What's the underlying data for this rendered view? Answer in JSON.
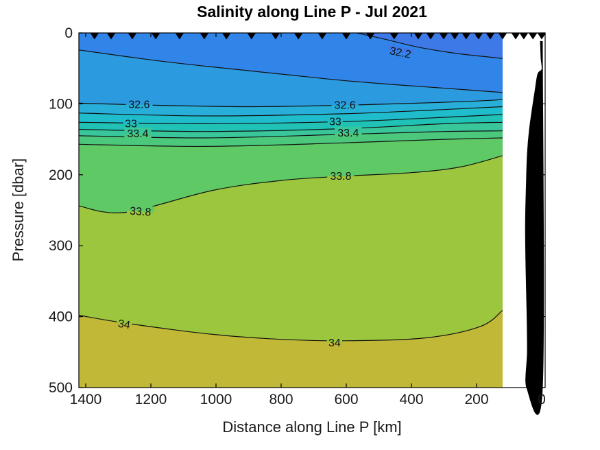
{
  "chart_data": {
    "type": "filled-contour",
    "title": "Salinity along Line P - Jul 2021",
    "xlabel": "Distance along Line P [km]",
    "ylabel": "Pressure [dbar]",
    "x_ticks": [
      1400,
      1200,
      1000,
      800,
      600,
      400,
      200,
      0
    ],
    "y_ticks": [
      0,
      100,
      200,
      300,
      400,
      500
    ],
    "xlim": [
      1420,
      0
    ],
    "ylim": [
      0,
      500
    ],
    "x_axis_reversed": true,
    "contour_interval": 0.2,
    "levels": [
      32.2,
      32.4,
      32.6,
      32.8,
      33.0,
      33.2,
      33.4,
      33.6,
      33.8,
      34.0
    ],
    "bands": [
      {
        "range": "<32.2",
        "color": "#3D7AE8"
      },
      {
        "range": "32.2-32.4",
        "color": "#3185E9"
      },
      {
        "range": "32.4-32.6",
        "color": "#2C9ADF"
      },
      {
        "range": "32.6-32.8",
        "color": "#27AED9"
      },
      {
        "range": "32.8-33.0",
        "color": "#1FBCCB"
      },
      {
        "range": "33.0-33.2",
        "color": "#1FC2B4"
      },
      {
        "range": "33.2-33.4",
        "color": "#38C69A"
      },
      {
        "range": "33.4-33.6",
        "color": "#4CC87D"
      },
      {
        "range": "33.6-33.8",
        "color": "#5FC966"
      },
      {
        "range": "33.8-34.0",
        "color": "#9CC63E"
      },
      {
        "range": ">34.0",
        "color": "#C2B838"
      }
    ],
    "contours": [
      {
        "level": 32.2,
        "points": [
          [
            568,
            0
          ],
          [
            480,
            9
          ],
          [
            380,
            20
          ],
          [
            260,
            29
          ],
          [
            120,
            36
          ]
        ]
      },
      {
        "level": 32.4,
        "points": [
          [
            1421,
            24
          ],
          [
            1200,
            38
          ],
          [
            1030,
            47
          ],
          [
            800,
            58
          ],
          [
            610,
            67
          ],
          [
            420,
            74
          ],
          [
            295,
            78
          ],
          [
            120,
            84
          ]
        ]
      },
      {
        "level": 32.6,
        "points": [
          [
            1421,
            99
          ],
          [
            1180,
            102
          ],
          [
            900,
            104
          ],
          [
            610,
            102
          ],
          [
            380,
            99
          ],
          [
            200,
            96
          ],
          [
            120,
            94
          ]
        ]
      },
      {
        "level": 32.8,
        "points": [
          [
            1421,
            113
          ],
          [
            1030,
            117
          ],
          [
            610,
            114
          ],
          [
            300,
            108
          ],
          [
            120,
            104
          ]
        ]
      },
      {
        "level": 33.0,
        "points": [
          [
            1421,
            126
          ],
          [
            1030,
            128
          ],
          [
            610,
            125
          ],
          [
            300,
            119
          ],
          [
            120,
            115
          ]
        ]
      },
      {
        "level": 33.2,
        "points": [
          [
            1421,
            136
          ],
          [
            1030,
            139
          ],
          [
            610,
            135
          ],
          [
            300,
            128
          ],
          [
            120,
            126
          ]
        ]
      },
      {
        "level": 33.4,
        "points": [
          [
            1421,
            145
          ],
          [
            1030,
            148
          ],
          [
            610,
            143
          ],
          [
            300,
            139
          ],
          [
            120,
            138
          ]
        ]
      },
      {
        "level": 33.6,
        "points": [
          [
            1421,
            157
          ],
          [
            1030,
            160
          ],
          [
            610,
            155
          ],
          [
            300,
            150
          ],
          [
            120,
            148
          ]
        ]
      },
      {
        "level": 33.8,
        "points": [
          [
            1421,
            244
          ],
          [
            1280,
            253
          ],
          [
            1010,
            222
          ],
          [
            800,
            208
          ],
          [
            610,
            202
          ],
          [
            400,
            197
          ],
          [
            250,
            189
          ],
          [
            120,
            173
          ]
        ]
      },
      {
        "level": 34.0,
        "points": [
          [
            1421,
            398
          ],
          [
            1280,
            409
          ],
          [
            1010,
            425
          ],
          [
            800,
            432
          ],
          [
            610,
            434
          ],
          [
            358,
            430
          ],
          [
            189,
            414
          ],
          [
            120,
            391
          ]
        ]
      }
    ],
    "contour_labels": [
      {
        "text": "32.2",
        "km": 434,
        "dbar": 28,
        "rot": 11,
        "upper": "<32.2",
        "lower": "32.2-32.4"
      },
      {
        "text": "32.6",
        "km": 1236,
        "dbar": 101,
        "rot": 0,
        "upper": "32.4-32.6",
        "lower": "32.6-32.8"
      },
      {
        "text": "32.6",
        "km": 604,
        "dbar": 102,
        "rot": 0,
        "upper": "32.4-32.6",
        "lower": "32.6-32.8"
      },
      {
        "text": "33",
        "km": 1261,
        "dbar": 128,
        "rot": 0,
        "upper": "32.8-33.0",
        "lower": "33.0-33.2"
      },
      {
        "text": "33",
        "km": 634,
        "dbar": 125,
        "rot": 0,
        "upper": "32.8-33.0",
        "lower": "33.0-33.2"
      },
      {
        "text": "33.4",
        "km": 1240,
        "dbar": 142,
        "rot": 0,
        "upper": "33.2-33.4",
        "lower": "33.4-33.6"
      },
      {
        "text": "33.4",
        "km": 594,
        "dbar": 141,
        "rot": 0,
        "upper": "33.2-33.4",
        "lower": "33.4-33.6"
      },
      {
        "text": "33.8",
        "km": 1232,
        "dbar": 252,
        "rot": 4,
        "upper": "33.6-33.8",
        "lower": "33.8-34.0"
      },
      {
        "text": "33.8",
        "km": 617,
        "dbar": 202,
        "rot": 0,
        "upper": "33.6-33.8",
        "lower": "33.8-34.0"
      },
      {
        "text": "34",
        "km": 1282,
        "dbar": 411,
        "rot": 9,
        "upper": "33.8-34.0",
        "lower": ">34.0"
      },
      {
        "text": "34",
        "km": 636,
        "dbar": 437,
        "rot": 0,
        "upper": "33.8-34.0",
        "lower": ">34.0"
      }
    ],
    "station_markers_km": [
      1373,
      1322,
      1257,
      1185,
      1112,
      1036,
      968,
      891,
      817,
      747,
      674,
      600,
      526,
      453,
      379,
      341,
      301,
      267,
      232,
      194,
      158,
      120,
      80,
      55,
      27,
      0
    ],
    "data_extent_km": [
      1421,
      120
    ],
    "bathymetry_outline": [
      [
        4,
        12
      ],
      [
        2,
        36
      ],
      [
        0,
        44
      ],
      [
        0,
        52
      ],
      [
        12,
        58
      ],
      [
        20,
        80
      ],
      [
        30,
        110
      ],
      [
        38,
        137
      ],
      [
        44,
        170
      ],
      [
        47,
        210
      ],
      [
        50,
        273
      ],
      [
        48,
        340
      ],
      [
        45,
        400
      ],
      [
        44,
        450
      ],
      [
        46,
        500
      ],
      [
        -2,
        500
      ],
      [
        -2,
        12
      ]
    ],
    "bathymetry_color": "#000000",
    "line_color": "#111111",
    "axis_color": "#000000",
    "tick_label_color": "#1a1a1a"
  }
}
